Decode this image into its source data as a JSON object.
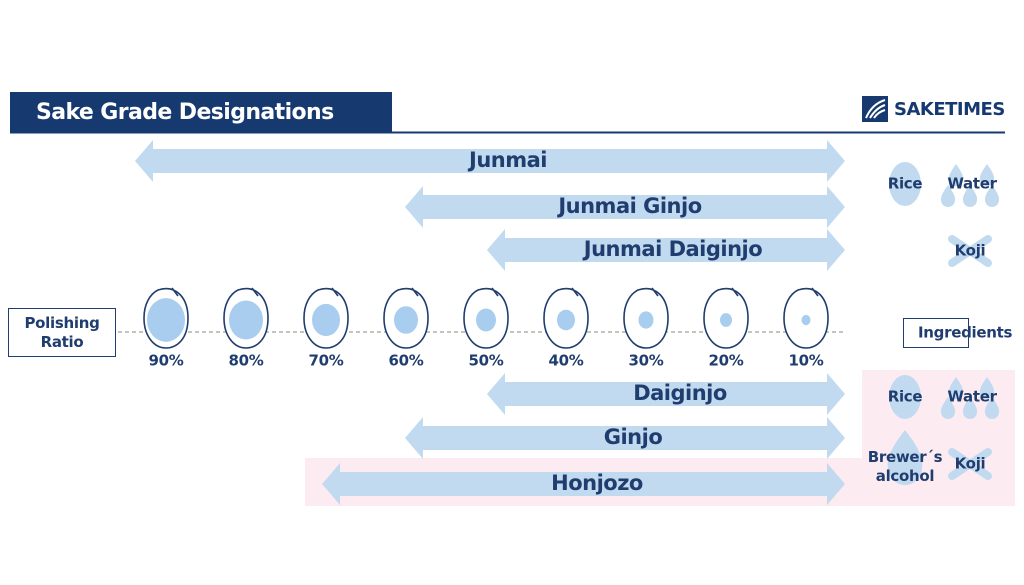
{
  "header": {
    "title": "Sake Grade Designations",
    "logo": "SAKETIMES"
  },
  "junmai_grades": [
    "Junmai",
    "Junmai Ginjo",
    "Junmai Daiginjo"
  ],
  "polishing": {
    "label": "Polishing Ratio",
    "ratios": [
      "90%",
      "80%",
      "70%",
      "60%",
      "50%",
      "40%",
      "30%",
      "20%",
      "10%"
    ]
  },
  "ingredients_label": "Ingredients",
  "other_grades": [
    "Daiginjo",
    "Ginjo",
    "Honjozo"
  ],
  "junmai_ingredients": [
    "Rice",
    "Water",
    "Koji"
  ],
  "other_ingredients": [
    "Rice",
    "Water",
    "Brewer´s alcohol",
    "Koji"
  ]
}
